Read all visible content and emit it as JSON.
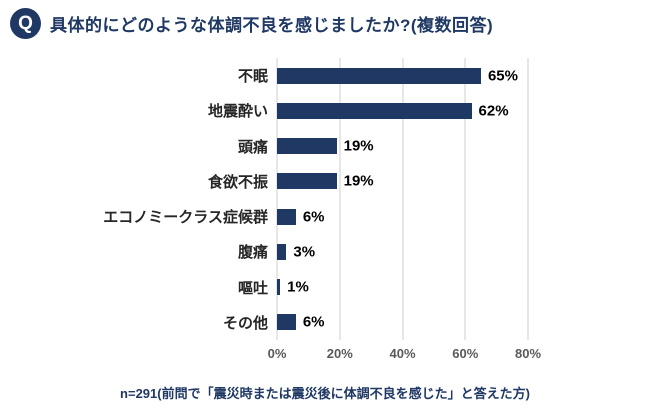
{
  "header": {
    "badge": "Q",
    "title": "具体的にどのような体調不良を感じましたか?(複数回答)"
  },
  "footnote": "n=291(前問で「震災時または震災後に体調不良を感じた」と答えた方)",
  "chart_data": {
    "type": "bar",
    "orientation": "horizontal",
    "title": "具体的にどのような体調不良を感じましたか?(複数回答)",
    "categories": [
      "不眠",
      "地震酔い",
      "頭痛",
      "食欲不振",
      "エコノミークラス症候群",
      "腹痛",
      "嘔吐",
      "その他"
    ],
    "values": [
      65,
      62,
      19,
      19,
      6,
      3,
      1,
      6
    ],
    "unit": "%",
    "xlim": [
      0,
      80
    ],
    "x_ticks": [
      "0%",
      "20%",
      "40%",
      "60%",
      "80%"
    ],
    "grid": "vertical",
    "legend": "none",
    "bar_color": "#1f3864",
    "accent_color": "#1f3864"
  }
}
